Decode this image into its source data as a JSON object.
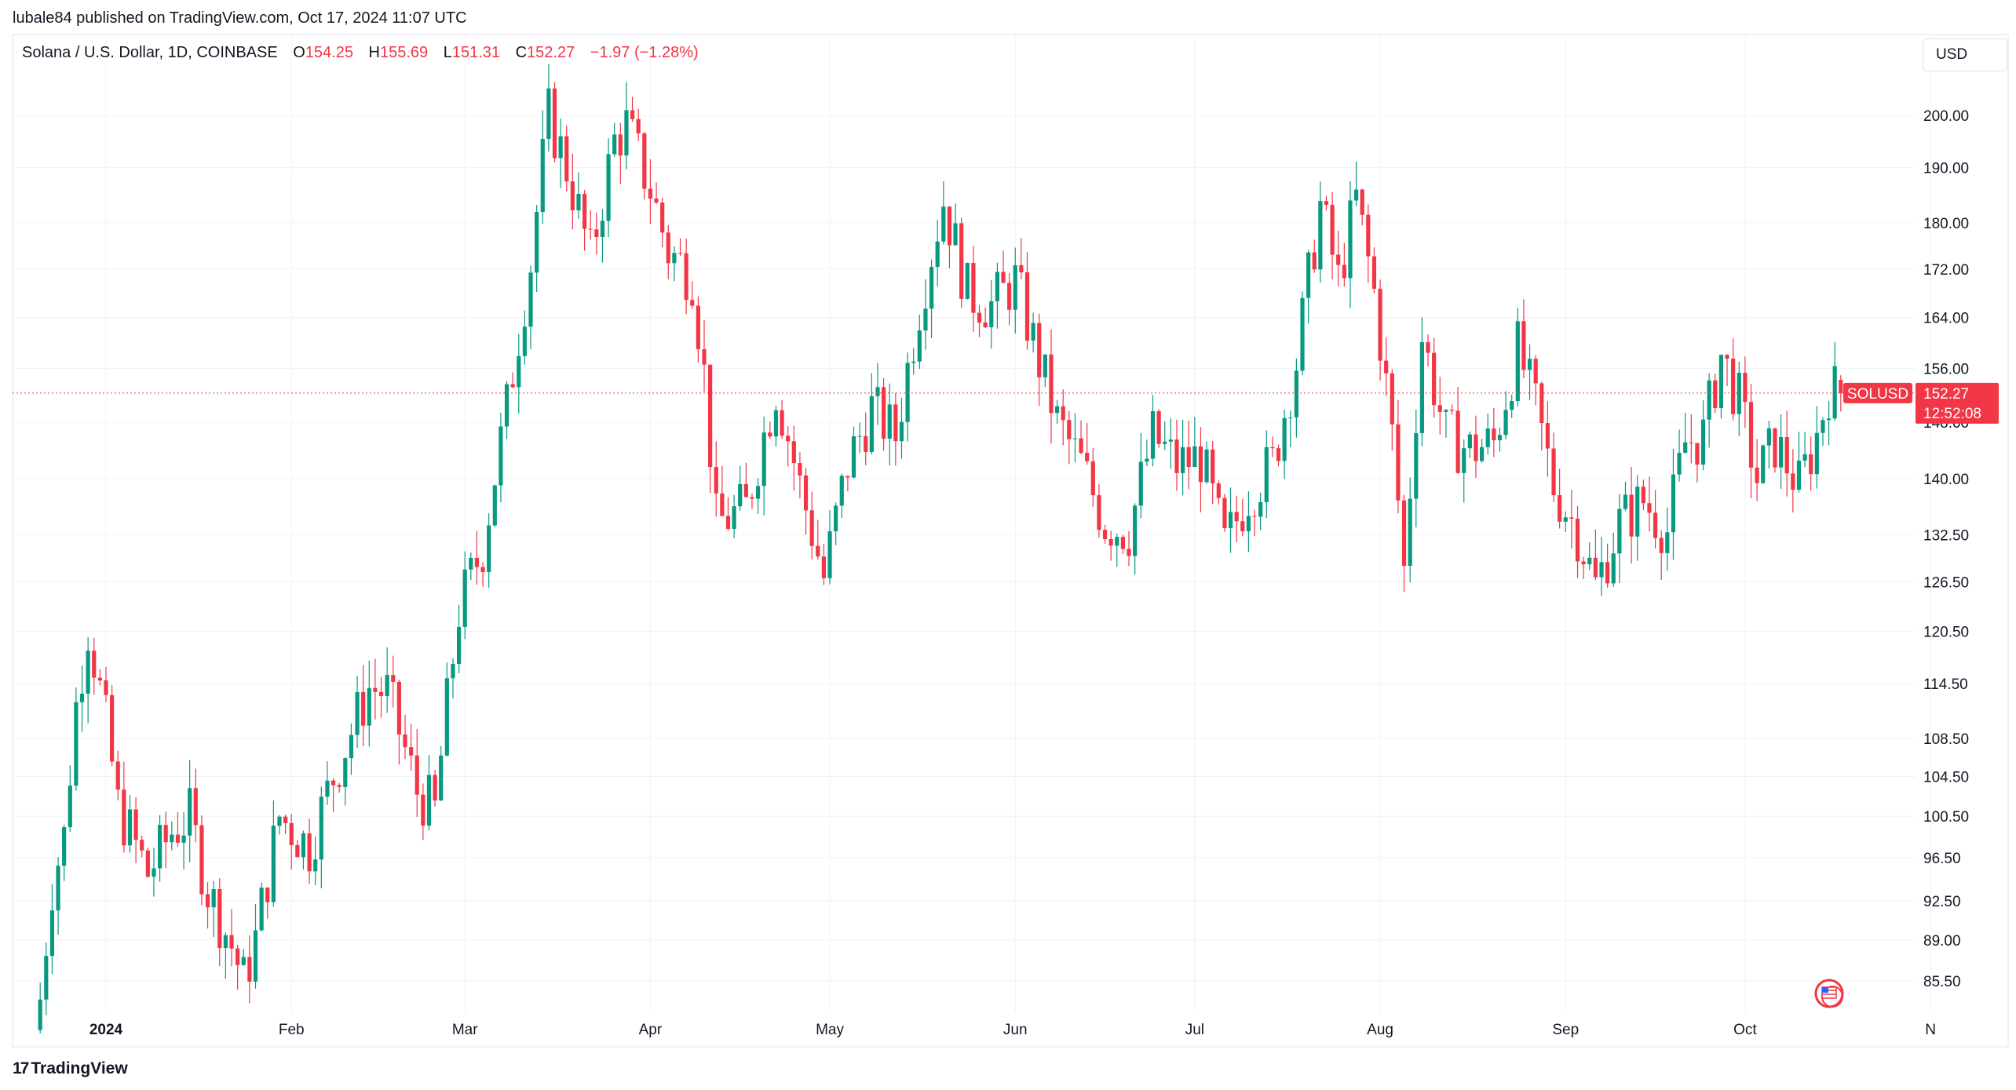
{
  "publisher_line": "lubale84 published on TradingView.com, Oct 17, 2024 11:07 UTC",
  "header": {
    "symbol": "Solana / U.S. Dollar, 1D, COINBASE",
    "o_label": "O",
    "o_value": "154.25",
    "h_label": "H",
    "h_value": "155.69",
    "l_label": "L",
    "l_value": "151.31",
    "c_label": "C",
    "c_value": "152.27",
    "change": "−1.97 (−1.28%)"
  },
  "currency_button": "USD",
  "brand": "TradingView",
  "brand_mark": "17",
  "colors": {
    "up": "#089981",
    "down": "#f23645",
    "grid": "#f0f3fa",
    "text": "#131722"
  },
  "chart_data": {
    "type": "candlestick",
    "symbol": "SOLUSD",
    "price_tag": {
      "label": "SOLUSD",
      "value": "152.27",
      "countdown": "12:52:08"
    },
    "y_axis": {
      "scale": "log",
      "ticks": [
        "200.00",
        "190.00",
        "180.00",
        "172.00",
        "164.00",
        "156.00",
        "148.00",
        "140.00",
        "132.50",
        "126.50",
        "120.50",
        "114.50",
        "108.50",
        "104.50",
        "100.50",
        "96.50",
        "92.50",
        "89.00",
        "85.50"
      ]
    },
    "x_axis": {
      "ticks": [
        "2024",
        "Feb",
        "Mar",
        "Apr",
        "May",
        "Jun",
        "Jul",
        "Aug",
        "Sep",
        "Oct",
        "N"
      ]
    },
    "candles_approx_close": [
      [
        "2023-12-21",
        84.0
      ],
      [
        "2023-12-23",
        94.0
      ],
      [
        "2023-12-25",
        98.5
      ],
      [
        "2023-12-27",
        112.0
      ],
      [
        "2023-12-29",
        121.0
      ],
      [
        "2024-01-01",
        110.0
      ],
      [
        "2024-01-03",
        101.5
      ],
      [
        "2024-01-08",
        95.0
      ],
      [
        "2024-01-12",
        99.0
      ],
      [
        "2024-01-15",
        100.5
      ],
      [
        "2024-01-18",
        93.5
      ],
      [
        "2024-01-22",
        88.5
      ],
      [
        "2024-01-24",
        85.5
      ],
      [
        "2024-01-26",
        89.0
      ],
      [
        "2024-01-30",
        100.5
      ],
      [
        "2024-02-04",
        97.5
      ],
      [
        "2024-02-08",
        104.5
      ],
      [
        "2024-02-14",
        114.0
      ],
      [
        "2024-02-17",
        113.5
      ],
      [
        "2024-02-22",
        103.0
      ],
      [
        "2024-02-25",
        101.0
      ],
      [
        "2024-02-29",
        123.0
      ],
      [
        "2024-03-04",
        131.0
      ],
      [
        "2024-03-08",
        150.0
      ],
      [
        "2024-03-12",
        173.0
      ],
      [
        "2024-03-15",
        200.0
      ],
      [
        "2024-03-18",
        190.0
      ],
      [
        "2024-03-22",
        174.0
      ],
      [
        "2024-03-26",
        195.0
      ],
      [
        "2024-03-28",
        198.0
      ],
      [
        "2024-04-01",
        186.0
      ],
      [
        "2024-04-04",
        175.0
      ],
      [
        "2024-04-08",
        171.0
      ],
      [
        "2024-04-10",
        155.0
      ],
      [
        "2024-04-12",
        134.0
      ],
      [
        "2024-04-17",
        136.0
      ],
      [
        "2024-04-22",
        153.0
      ],
      [
        "2024-04-26",
        139.0
      ],
      [
        "2024-04-30",
        127.0
      ],
      [
        "2024-05-04",
        142.0
      ],
      [
        "2024-05-08",
        150.0
      ],
      [
        "2024-05-12",
        146.0
      ],
      [
        "2024-05-16",
        166.0
      ],
      [
        "2024-05-20",
        184.0
      ],
      [
        "2024-05-24",
        168.0
      ],
      [
        "2024-05-28",
        166.0
      ],
      [
        "2024-06-01",
        170.0
      ],
      [
        "2024-06-05",
        157.0
      ],
      [
        "2024-06-08",
        148.0
      ],
      [
        "2024-06-12",
        142.0
      ],
      [
        "2024-06-16",
        134.0
      ],
      [
        "2024-06-20",
        133.0
      ],
      [
        "2024-06-24",
        146.0
      ],
      [
        "2024-06-28",
        142.0
      ],
      [
        "2024-07-02",
        143.0
      ],
      [
        "2024-07-06",
        131.0
      ],
      [
        "2024-07-10",
        138.0
      ],
      [
        "2024-07-14",
        142.0
      ],
      [
        "2024-07-18",
        157.0
      ],
      [
        "2024-07-22",
        183.0
      ],
      [
        "2024-07-25",
        170.0
      ],
      [
        "2024-07-28",
        184.0
      ],
      [
        "2024-07-31",
        168.0
      ],
      [
        "2024-08-03",
        146.0
      ],
      [
        "2024-08-05",
        128.0
      ],
      [
        "2024-08-08",
        161.0
      ],
      [
        "2024-08-12",
        146.0
      ],
      [
        "2024-08-16",
        144.0
      ],
      [
        "2024-08-20",
        145.0
      ],
      [
        "2024-08-24",
        159.0
      ],
      [
        "2024-08-27",
        150.0
      ],
      [
        "2024-08-30",
        139.0
      ],
      [
        "2024-09-03",
        133.0
      ],
      [
        "2024-09-06",
        126.0
      ],
      [
        "2024-09-10",
        134.0
      ],
      [
        "2024-09-14",
        137.0
      ],
      [
        "2024-09-18",
        133.0
      ],
      [
        "2024-09-21",
        145.0
      ],
      [
        "2024-09-24",
        146.0
      ],
      [
        "2024-09-27",
        158.0
      ],
      [
        "2024-09-30",
        151.0
      ],
      [
        "2024-10-03",
        140.0
      ],
      [
        "2024-10-06",
        145.0
      ],
      [
        "2024-10-10",
        139.0
      ],
      [
        "2024-10-13",
        146.0
      ],
      [
        "2024-10-15",
        153.0
      ],
      [
        "2024-10-17",
        152.27
      ]
    ]
  }
}
